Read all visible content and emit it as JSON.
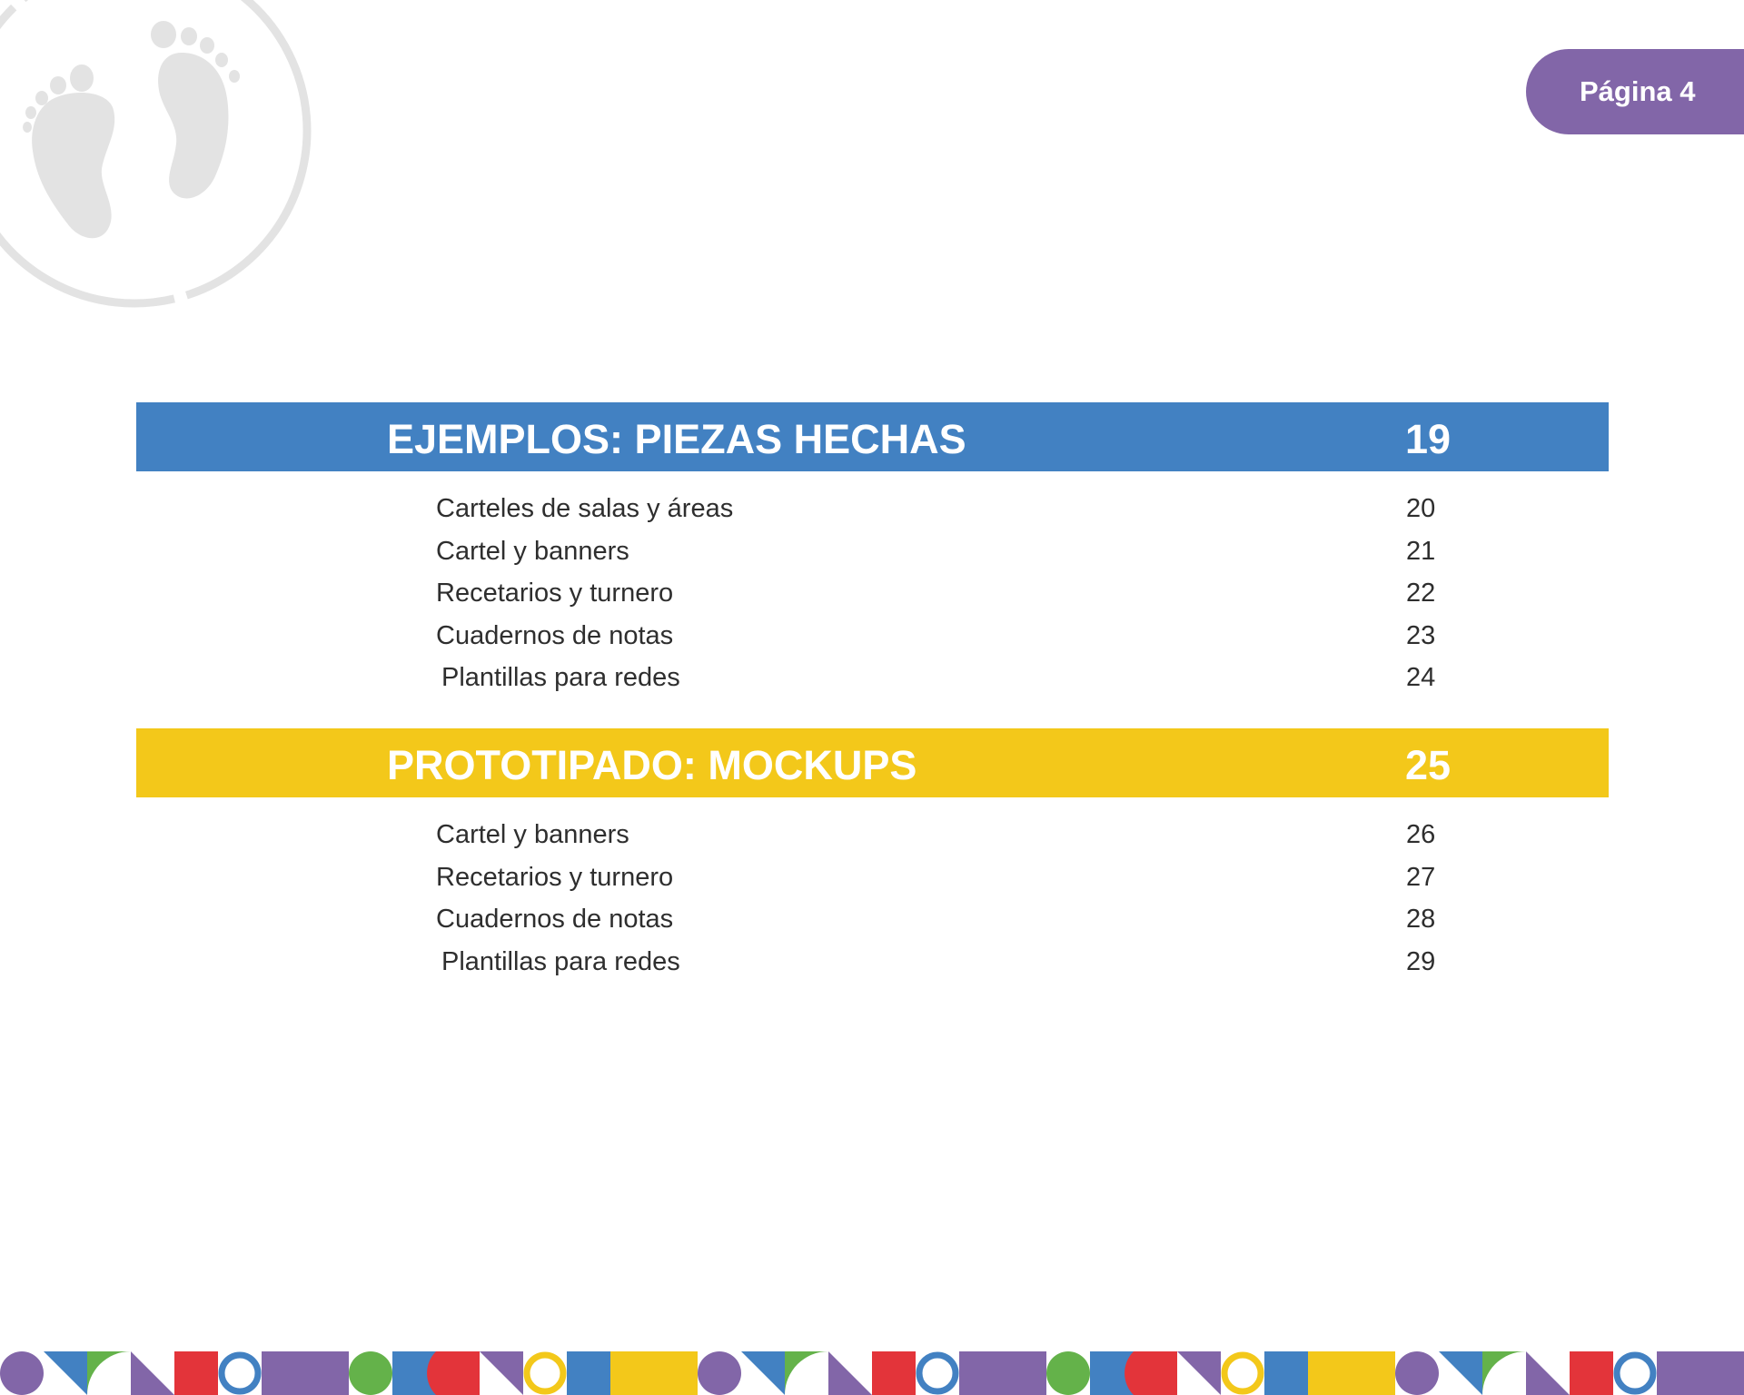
{
  "page_label": "Página 4",
  "colors": {
    "purple": "#8266a8",
    "blue": "#4281c2",
    "yellow": "#f3c81a",
    "green": "#64b24a",
    "red": "#e3343a",
    "logo_gray": "#e3e3e3"
  },
  "icons": {
    "logo": "baby-footprints-icon"
  },
  "sections": [
    {
      "title": "EJEMPLOS: PIEZAS HECHAS",
      "page": "19",
      "items": [
        {
          "label": "Carteles de salas y áreas",
          "page": "20"
        },
        {
          "label": "Cartel y banners",
          "page": "21"
        },
        {
          "label": "Recetarios y turnero",
          "page": "22"
        },
        {
          "label": "Cuadernos de notas",
          "page": "23"
        },
        {
          "label": "Plantillas para redes",
          "page": "24"
        }
      ]
    },
    {
      "title": "PROTOTIPADO: MOCKUPS",
      "page": "25",
      "items": [
        {
          "label": "Cartel y banners",
          "page": "26"
        },
        {
          "label": "Recetarios y turnero",
          "page": "27"
        },
        {
          "label": "Cuadernos de notas",
          "page": "28"
        },
        {
          "label": "Plantillas para redes",
          "page": "29"
        }
      ]
    }
  ]
}
